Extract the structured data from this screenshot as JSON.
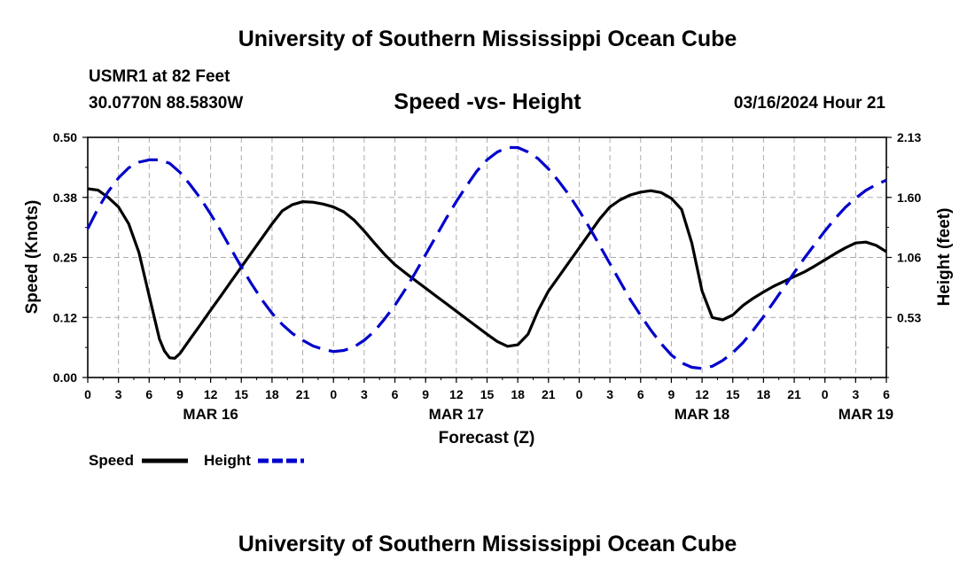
{
  "header": {
    "title_top": "University of Southern Mississippi Ocean Cube",
    "title_bottom": "University of Southern Mississippi Ocean Cube",
    "station": "USMR1 at 82 Feet",
    "coords": "30.0770N  88.5830W",
    "timestamp": "03/16/2024 Hour 21"
  },
  "chart_data": {
    "type": "line",
    "title": "Speed -vs- Height",
    "xlabel": "Forecast (Z)",
    "ylabel": "Speed (Knots)",
    "y2label": "Height (feet)",
    "ylim": [
      0,
      0.5
    ],
    "y2lim": [
      0,
      2.13
    ],
    "yticks": [
      "0.00",
      "0.12",
      "0.25",
      "0.38",
      "0.50"
    ],
    "y2ticks": [
      "0.53",
      "1.06",
      "1.60",
      "2.13"
    ],
    "xlim": [
      0,
      78
    ],
    "xticks": [
      "0",
      "3",
      "6",
      "9",
      "12",
      "15",
      "18",
      "21",
      "0",
      "3",
      "6",
      "9",
      "12",
      "15",
      "18",
      "21",
      "0",
      "3",
      "6",
      "9",
      "12",
      "15",
      "18",
      "21",
      "0",
      "3",
      "6"
    ],
    "dates": [
      {
        "label": "MAR 16",
        "hour": 12
      },
      {
        "label": "MAR 17",
        "hour": 36
      },
      {
        "label": "MAR 18",
        "hour": 60
      },
      {
        "label": "MAR 19",
        "hour": 76
      }
    ],
    "series": [
      {
        "name": "Speed",
        "color": "#000000",
        "style": "solid",
        "axis": "left",
        "x": [
          0,
          1,
          2,
          3,
          4,
          5,
          6,
          7,
          7.5,
          8,
          8.5,
          9,
          10,
          11,
          12,
          13,
          14,
          15,
          16,
          17,
          18,
          19,
          20,
          21,
          22,
          23,
          24,
          25,
          26,
          27,
          28,
          29,
          30,
          31,
          32,
          33,
          34,
          35,
          36,
          37,
          38,
          39,
          40,
          41,
          42,
          43,
          44,
          45,
          46,
          47,
          48,
          49,
          50,
          51,
          52,
          53,
          54,
          55,
          56,
          57,
          58,
          59,
          60,
          61,
          62,
          63,
          64,
          65,
          66,
          67,
          68,
          69,
          70,
          71,
          72,
          73,
          74,
          75,
          76,
          77,
          78
        ],
        "values": [
          0.393,
          0.39,
          0.375,
          0.355,
          0.32,
          0.26,
          0.17,
          0.08,
          0.055,
          0.041,
          0.04,
          0.05,
          0.08,
          0.11,
          0.14,
          0.17,
          0.2,
          0.23,
          0.26,
          0.29,
          0.32,
          0.347,
          0.36,
          0.366,
          0.365,
          0.361,
          0.355,
          0.345,
          0.328,
          0.305,
          0.28,
          0.256,
          0.235,
          0.218,
          0.202,
          0.186,
          0.17,
          0.154,
          0.138,
          0.122,
          0.106,
          0.09,
          0.075,
          0.065,
          0.068,
          0.09,
          0.14,
          0.18,
          0.21,
          0.24,
          0.27,
          0.3,
          0.33,
          0.355,
          0.37,
          0.38,
          0.386,
          0.389,
          0.385,
          0.373,
          0.35,
          0.28,
          0.18,
          0.125,
          0.12,
          0.13,
          0.15,
          0.165,
          0.178,
          0.19,
          0.2,
          0.21,
          0.22,
          0.232,
          0.245,
          0.258,
          0.27,
          0.28,
          0.282,
          0.275,
          0.262
        ]
      },
      {
        "name": "Height",
        "color": "#0000cc",
        "style": "dashed",
        "axis": "right",
        "x": [
          0,
          1,
          2,
          3,
          4,
          5,
          6,
          7,
          8,
          9,
          10,
          11,
          12,
          13,
          14,
          15,
          16,
          17,
          18,
          19,
          20,
          21,
          22,
          23,
          24,
          25,
          26,
          27,
          28,
          29,
          30,
          31,
          32,
          33,
          34,
          35,
          36,
          37,
          38,
          39,
          40,
          41,
          42,
          43,
          44,
          45,
          46,
          47,
          48,
          49,
          50,
          51,
          52,
          53,
          54,
          55,
          56,
          57,
          58,
          59,
          60,
          61,
          62,
          63,
          64,
          65,
          66,
          67,
          68,
          69,
          70,
          71,
          72,
          73,
          74,
          75,
          76,
          77,
          78
        ],
        "values": [
          1.32,
          1.5,
          1.65,
          1.77,
          1.86,
          1.91,
          1.93,
          1.93,
          1.9,
          1.82,
          1.71,
          1.59,
          1.45,
          1.3,
          1.14,
          0.98,
          0.83,
          0.69,
          0.57,
          0.47,
          0.39,
          0.33,
          0.28,
          0.25,
          0.23,
          0.24,
          0.27,
          0.33,
          0.41,
          0.52,
          0.64,
          0.78,
          0.93,
          1.09,
          1.25,
          1.41,
          1.56,
          1.7,
          1.83,
          1.93,
          2.0,
          2.04,
          2.04,
          2.0,
          1.94,
          1.85,
          1.74,
          1.62,
          1.48,
          1.33,
          1.17,
          1.01,
          0.85,
          0.69,
          0.55,
          0.42,
          0.3,
          0.2,
          0.13,
          0.09,
          0.08,
          0.1,
          0.15,
          0.22,
          0.31,
          0.42,
          0.54,
          0.67,
          0.8,
          0.93,
          1.06,
          1.18,
          1.3,
          1.41,
          1.51,
          1.59,
          1.66,
          1.71,
          1.75
        ]
      }
    ],
    "legend": [
      {
        "label": "Speed",
        "color": "#000000",
        "style": "solid"
      },
      {
        "label": "Height",
        "color": "#0000cc",
        "style": "dashed"
      }
    ]
  }
}
